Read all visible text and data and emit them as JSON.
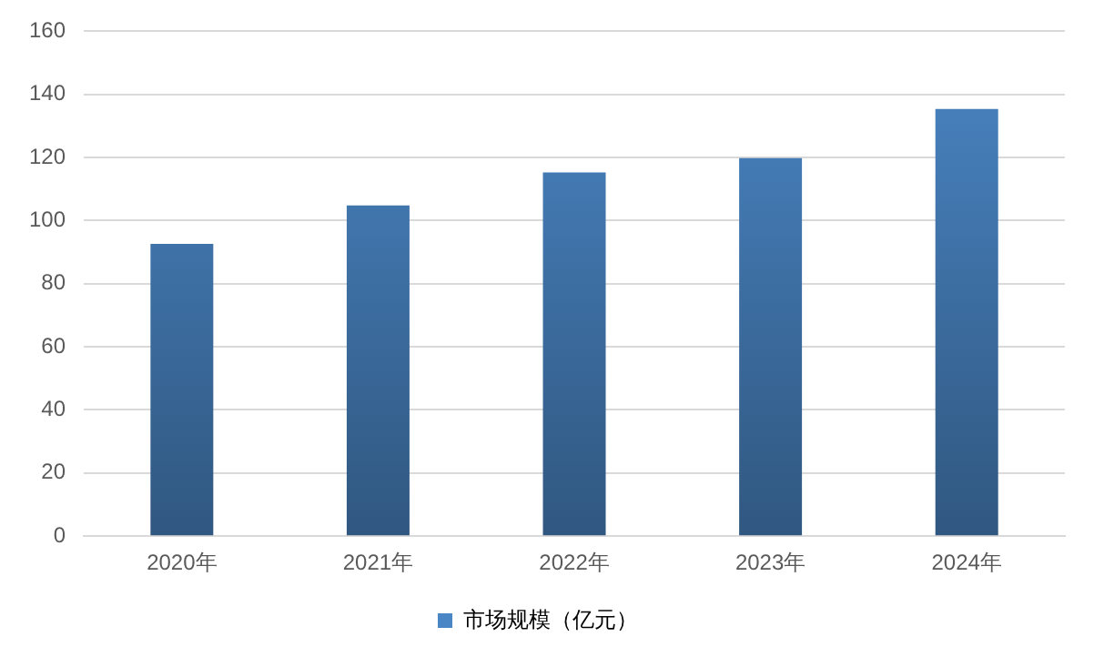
{
  "chart_data": {
    "type": "bar",
    "categories": [
      "2020年",
      "2021年",
      "2022年",
      "2023年",
      "2024年"
    ],
    "series": [
      {
        "name": "市场规模（亿元）",
        "color": "#4a86c5",
        "values": [
          92.6,
          104.8,
          115.3,
          119.8,
          135.4
        ]
      }
    ],
    "ylim": [
      0,
      160
    ],
    "yticks": [
      0,
      20,
      40,
      60,
      80,
      100,
      120,
      140,
      160
    ],
    "grid": "y",
    "legend": "bottom"
  }
}
